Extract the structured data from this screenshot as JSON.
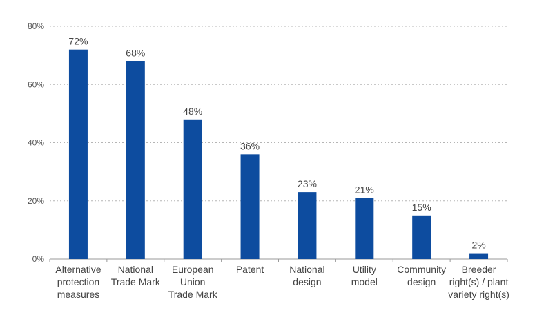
{
  "chart_data": {
    "type": "bar",
    "title": "",
    "xlabel": "",
    "ylabel": "",
    "ylim": [
      0,
      80
    ],
    "yticks": [
      0,
      20,
      40,
      60,
      80
    ],
    "ytick_suffix": "%",
    "grid": true,
    "bar_color": "#0d4c9f",
    "categories": [
      [
        "Alternative",
        "protection",
        "measures"
      ],
      [
        "National",
        "Trade Mark"
      ],
      [
        "European",
        "Union",
        "Trade Mark"
      ],
      [
        "Patent"
      ],
      [
        "National",
        "design"
      ],
      [
        "Utility",
        "model"
      ],
      [
        "Community",
        "design"
      ],
      [
        "Breeder",
        "right(s) / plant",
        "variety right(s)"
      ]
    ],
    "values": [
      72,
      68,
      48,
      36,
      23,
      21,
      15,
      2
    ],
    "value_labels": [
      "72%",
      "68%",
      "48%",
      "36%",
      "23%",
      "21%",
      "15%",
      "2%"
    ]
  }
}
